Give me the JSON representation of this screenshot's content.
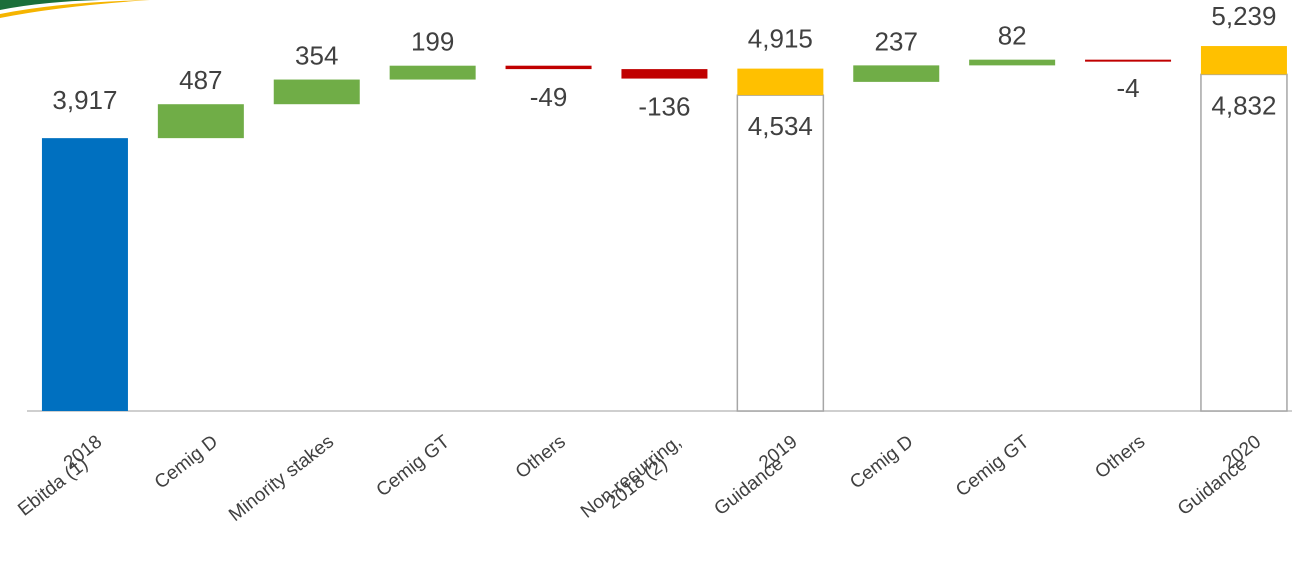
{
  "chart_data": {
    "type": "waterfall",
    "categories": [
      [
        "2018",
        "Ebitda (1)"
      ],
      [
        "Cemig D"
      ],
      [
        "Minority stakes"
      ],
      [
        "Cemig GT"
      ],
      [
        "Others"
      ],
      [
        "Non-recurring,",
        "2018 (2)"
      ],
      [
        "2019",
        "Guidance"
      ],
      [
        "Cemig D"
      ],
      [
        "Cemig GT"
      ],
      [
        "Others"
      ],
      [
        "2020",
        "Guidance"
      ]
    ],
    "values": [
      3917,
      487,
      354,
      199,
      -49,
      -136,
      null,
      237,
      82,
      -4,
      null
    ],
    "value_labels": [
      "3,917",
      "487",
      "354",
      "199",
      "-49",
      "-136",
      null,
      "237",
      "82",
      "-4",
      null
    ],
    "ranges": [
      null,
      null,
      null,
      null,
      null,
      null,
      [
        4534,
        4915
      ],
      null,
      null,
      null,
      [
        4832,
        5239
      ]
    ],
    "range_labels": [
      null,
      null,
      null,
      null,
      null,
      null,
      [
        "4,534",
        "4,915"
      ],
      null,
      null,
      null,
      [
        "4,832",
        "5,239"
      ]
    ],
    "colors": {
      "total": "#0070c0",
      "increase": "#70ad47",
      "decrease": "#c00000",
      "guidance": "#ffc000"
    },
    "ylim": [
      0,
      5900
    ]
  }
}
